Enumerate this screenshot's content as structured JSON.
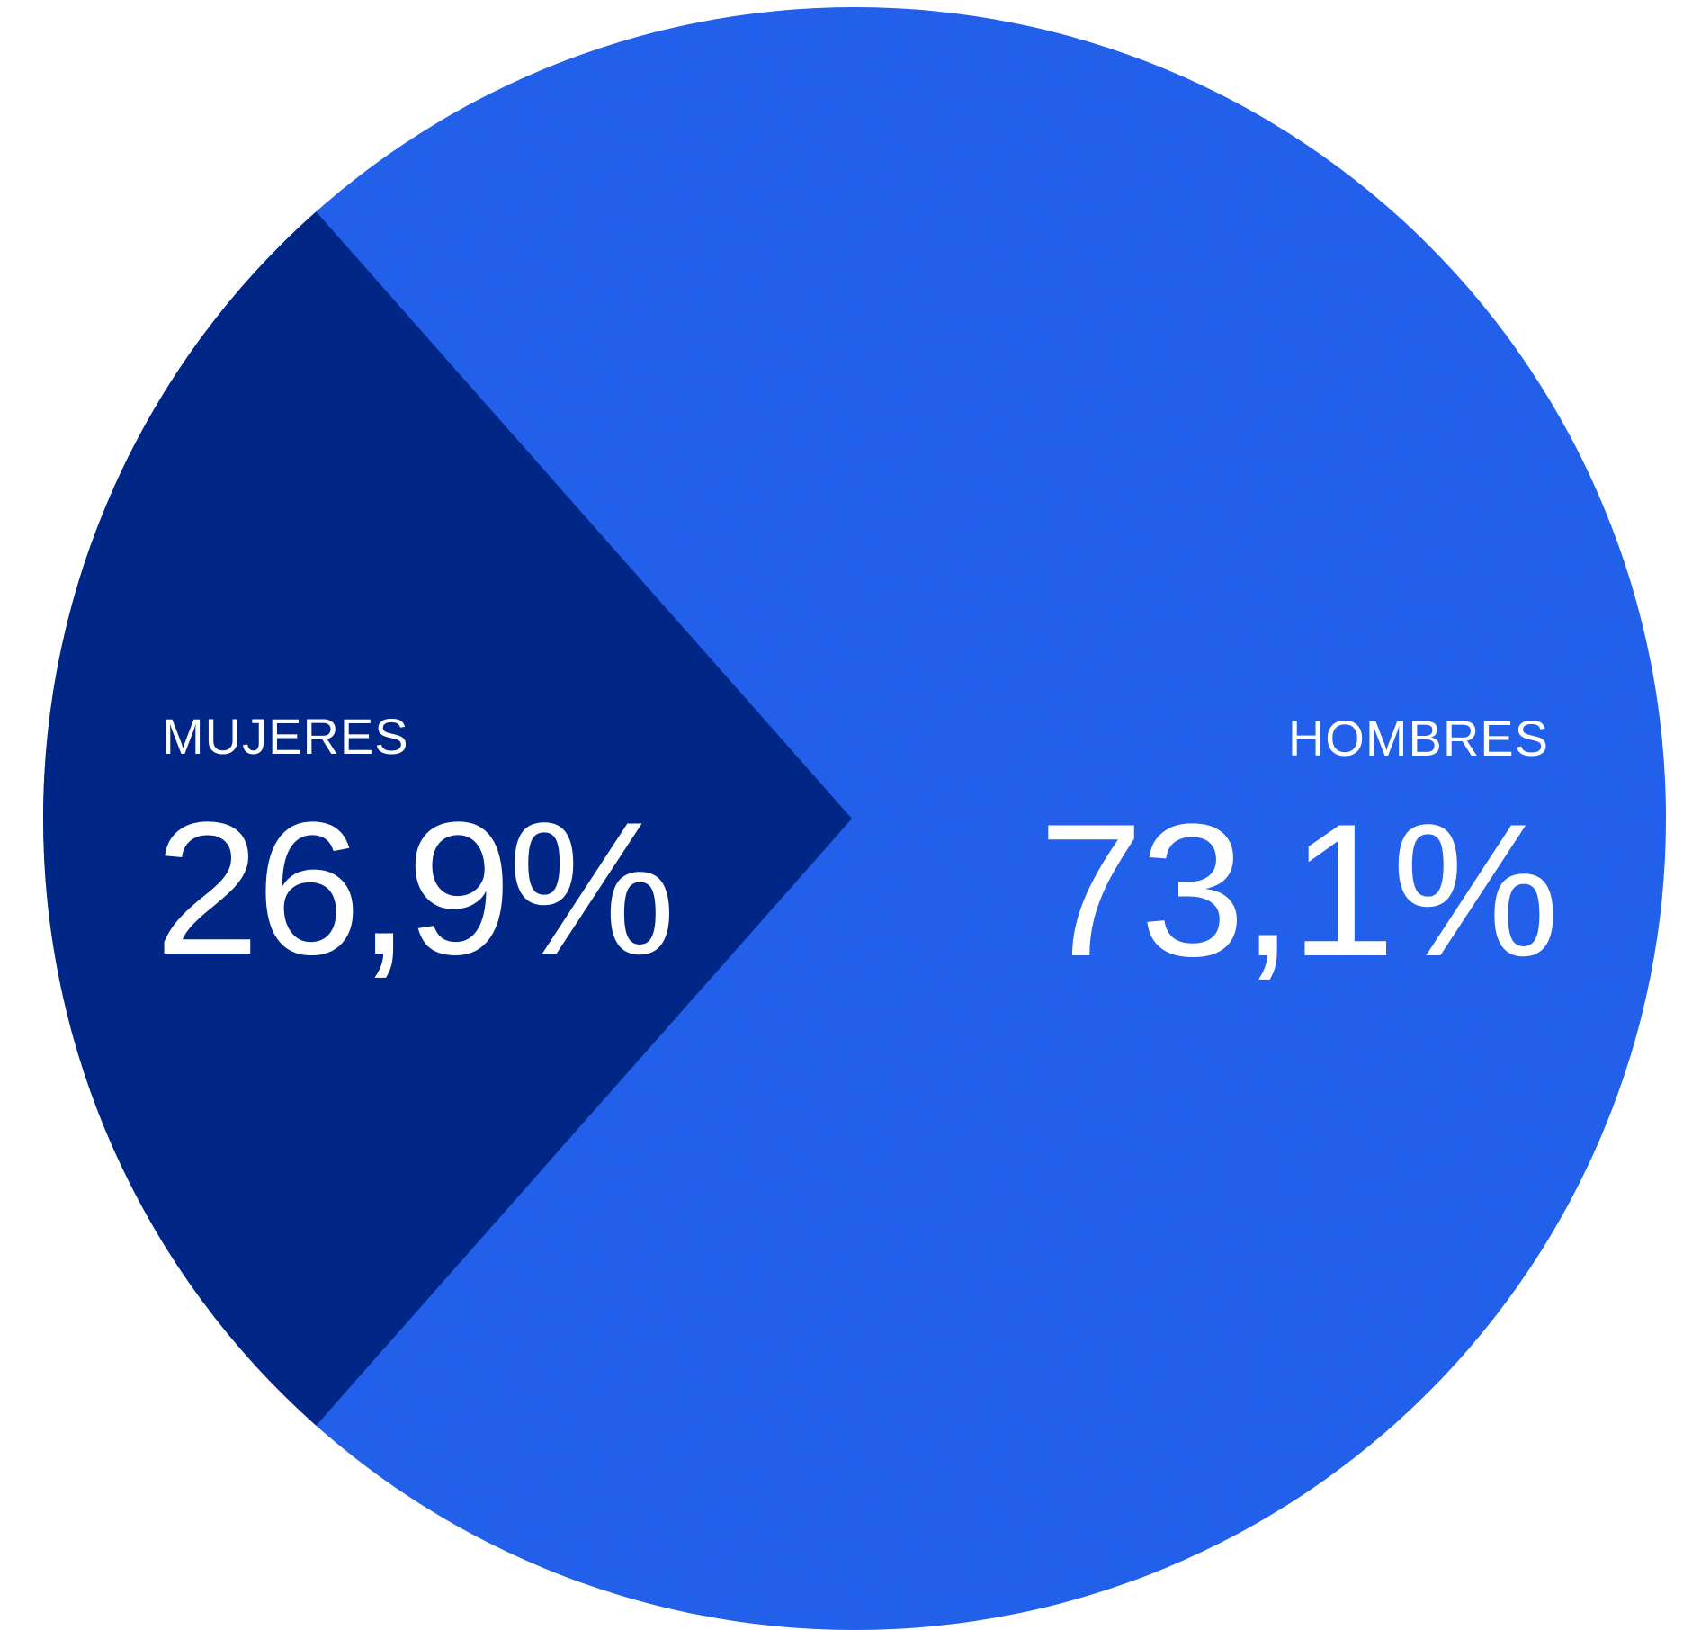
{
  "chart_data": {
    "type": "pie",
    "slices": [
      {
        "label": "HOMBRES",
        "value": 73.1,
        "display": "73,1%",
        "color": "#2766f7"
      },
      {
        "label": "MUJERES",
        "value": 26.9,
        "display": "26,9%",
        "color": "#0a2b8f"
      }
    ],
    "legend": "none"
  },
  "colors": {
    "label_text": "#ffffff",
    "background": "#ffffff"
  }
}
